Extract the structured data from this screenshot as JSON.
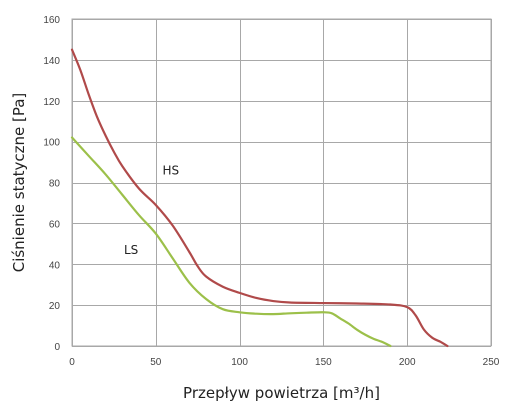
{
  "chart_data": {
    "type": "line",
    "title": "",
    "xlabel": "Przepływ powietrza [m³/h]",
    "ylabel": "Ciśnienie statyczne  [Pa]",
    "xlim": [
      0,
      250
    ],
    "ylim": [
      0,
      160
    ],
    "xticks": [
      0,
      50,
      100,
      150,
      200,
      250
    ],
    "yticks": [
      0,
      20,
      40,
      60,
      80,
      100,
      120,
      140,
      160
    ],
    "grid": true,
    "series": [
      {
        "name": "HS",
        "color": "#b04a4a",
        "x": [
          0,
          5,
          10,
          15,
          20,
          25,
          30,
          40,
          50,
          60,
          70,
          75,
          80,
          90,
          100,
          110,
          120,
          130,
          150,
          170,
          190,
          200,
          205,
          210,
          215,
          220,
          224
        ],
        "y": [
          145,
          135,
          123,
          112,
          103,
          95,
          88,
          77,
          69,
          59,
          46,
          39,
          34,
          29,
          26,
          23.5,
          22,
          21.3,
          21,
          20.8,
          20.3,
          19,
          15,
          8,
          4,
          2,
          0
        ]
      },
      {
        "name": "LS",
        "color": "#9cc04a",
        "x": [
          0,
          10,
          20,
          30,
          40,
          50,
          60,
          70,
          80,
          90,
          100,
          110,
          120,
          130,
          140,
          150,
          155,
          160,
          165,
          170,
          175,
          180,
          185,
          190
        ],
        "y": [
          102,
          93,
          84,
          74,
          64,
          55,
          43,
          31,
          23,
          18,
          16.5,
          15.8,
          15.6,
          16,
          16.3,
          16.5,
          16,
          13.5,
          11,
          8,
          5.5,
          3.5,
          2,
          0
        ]
      }
    ],
    "annotations": [
      {
        "text": "HS",
        "x": 54,
        "y": 84
      },
      {
        "text": "LS",
        "x": 31,
        "y": 45
      }
    ]
  }
}
